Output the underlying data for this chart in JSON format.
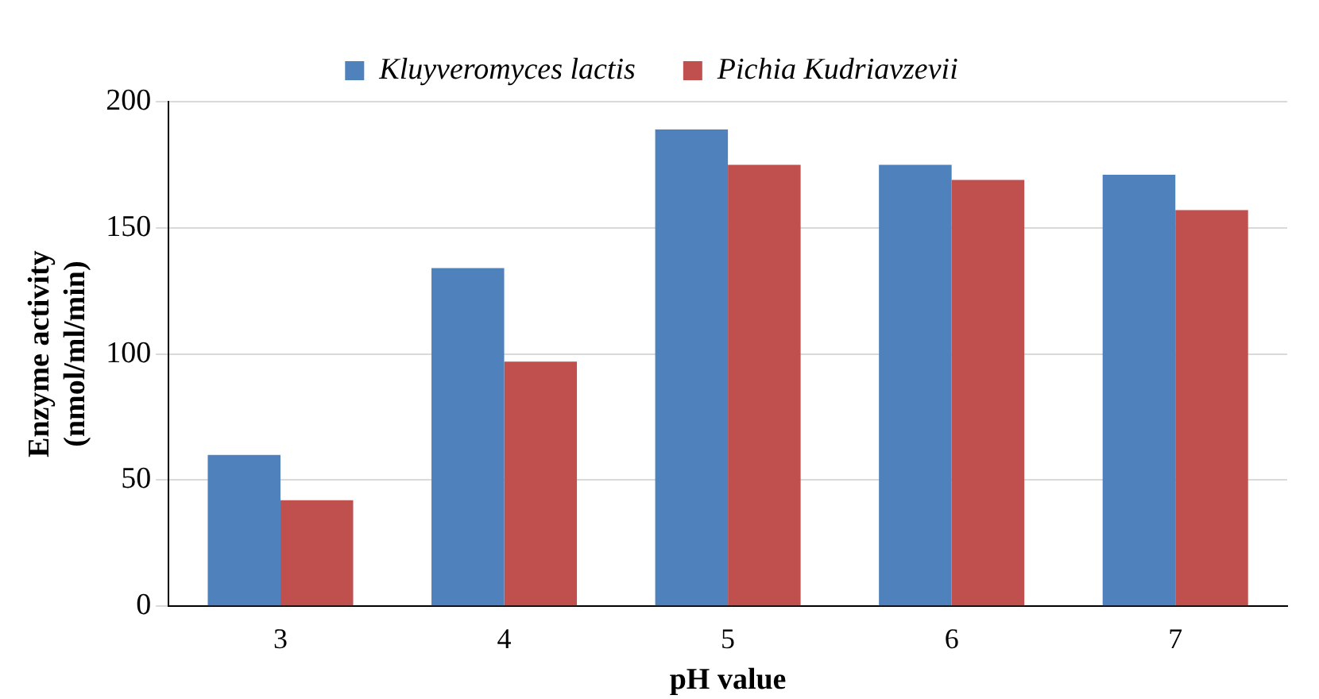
{
  "chart_data": {
    "type": "bar",
    "xlabel": "pH value",
    "ylabel": "Enzyme activity (nmol/ml/min)",
    "categories": [
      "3",
      "4",
      "5",
      "6",
      "7"
    ],
    "series": [
      {
        "name": "Kluyveromyces lactis",
        "color": "#4f81bd",
        "values": [
          60,
          134,
          189,
          175,
          171
        ]
      },
      {
        "name": "Pichia Kudriavzevii",
        "color": "#c0504d",
        "values": [
          42,
          97,
          175,
          169,
          157
        ]
      }
    ],
    "ylim": [
      0,
      200
    ],
    "yticks": [
      0,
      50,
      100,
      150,
      200
    ],
    "grid": "y",
    "legend": "top"
  }
}
